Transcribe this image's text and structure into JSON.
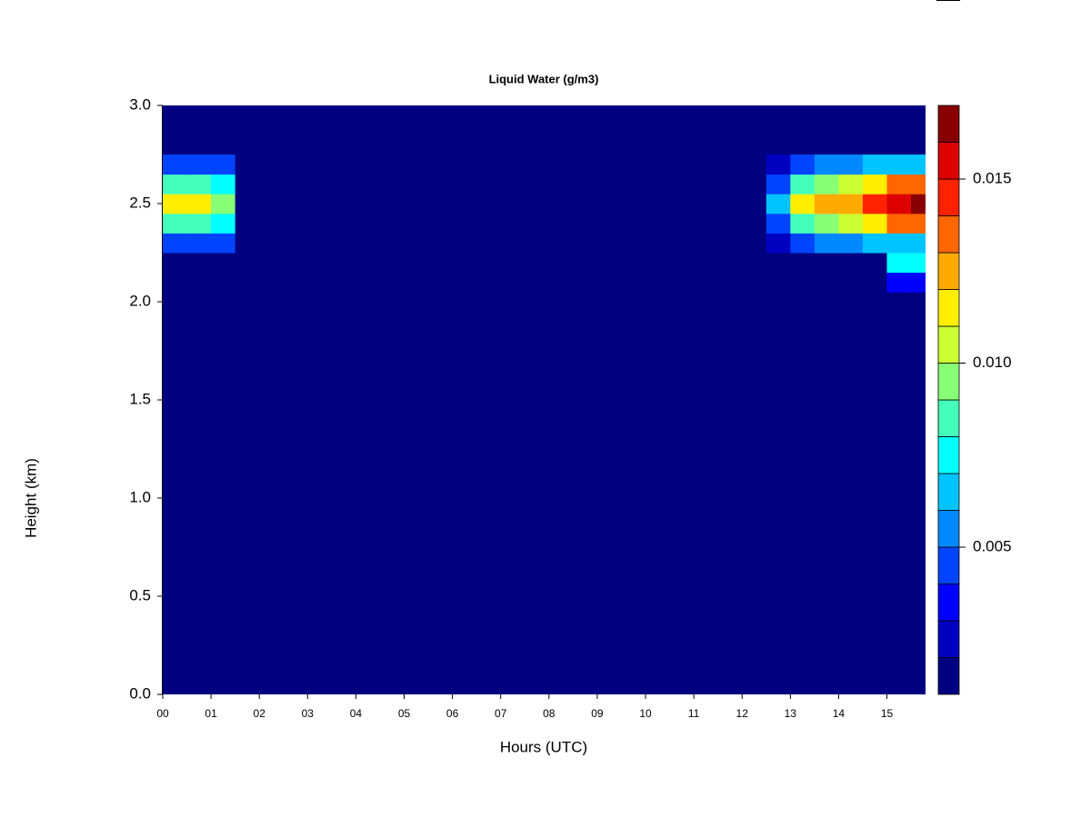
{
  "chart_data": {
    "type": "contour",
    "title": "Liquid Water (g/m3)",
    "x_label": "Hours (UTC)",
    "y_label": "Height (km)",
    "x": [
      0.25,
      0.75,
      1.25,
      1.75,
      2.25,
      2.75,
      3.25,
      3.75,
      4.25,
      4.75,
      5.25,
      5.75,
      6.25,
      6.75,
      7.25,
      7.75,
      8.25,
      8.75,
      9.25,
      9.75,
      10.25,
      10.75,
      11.25,
      11.75,
      12.25,
      12.75,
      13.25,
      13.75,
      14.25,
      14.75,
      15.25,
      15.75
    ],
    "y": [
      2.1,
      2.2,
      2.3,
      2.4,
      2.5,
      2.6,
      2.7
    ],
    "z": [
      [
        0,
        0,
        0,
        0,
        0,
        0,
        0,
        0,
        0,
        0,
        0,
        0,
        0,
        0,
        0,
        0,
        0,
        0,
        0,
        0,
        0,
        0,
        0,
        0,
        0,
        0,
        0,
        0,
        0,
        0,
        0.003,
        0.003
      ],
      [
        0,
        0,
        0,
        0,
        0,
        0,
        0,
        0,
        0,
        0,
        0,
        0,
        0,
        0,
        0,
        0,
        0,
        0,
        0,
        0,
        0,
        0,
        0,
        0,
        0,
        0,
        0,
        0,
        0,
        0,
        0.007,
        0.007
      ],
      [
        0.004,
        0.004,
        0.004,
        0,
        0,
        0,
        0,
        0,
        0,
        0,
        0,
        0,
        0,
        0,
        0,
        0,
        0,
        0,
        0,
        0,
        0,
        0,
        0,
        0,
        0,
        0.002,
        0.004,
        0.005,
        0.005,
        0.006,
        0.006,
        0.006
      ],
      [
        0.008,
        0.008,
        0.007,
        0,
        0,
        0,
        0,
        0,
        0,
        0,
        0,
        0,
        0,
        0,
        0,
        0,
        0,
        0,
        0,
        0,
        0,
        0,
        0,
        0,
        0,
        0.004,
        0.008,
        0.009,
        0.01,
        0.011,
        0.013,
        0.013
      ],
      [
        0.011,
        0.011,
        0.009,
        0,
        0,
        0,
        0,
        0,
        0,
        0,
        0,
        0,
        0,
        0,
        0,
        0,
        0,
        0,
        0,
        0,
        0,
        0,
        0,
        0,
        0,
        0.006,
        0.011,
        0.012,
        0.012,
        0.014,
        0.015,
        0.016
      ],
      [
        0.008,
        0.008,
        0.007,
        0,
        0,
        0,
        0,
        0,
        0,
        0,
        0,
        0,
        0,
        0,
        0,
        0,
        0,
        0,
        0,
        0,
        0,
        0,
        0,
        0,
        0,
        0.004,
        0.008,
        0.009,
        0.01,
        0.011,
        0.013,
        0.013
      ],
      [
        0.004,
        0.004,
        0.004,
        0,
        0,
        0,
        0,
        0,
        0,
        0,
        0,
        0,
        0,
        0,
        0,
        0,
        0,
        0,
        0,
        0,
        0,
        0,
        0,
        0,
        0,
        0.002,
        0.004,
        0.005,
        0.005,
        0.006,
        0.006,
        0.006
      ]
    ],
    "levels": [
      0.001,
      0.002,
      0.003,
      0.004,
      0.005,
      0.006,
      0.007,
      0.008,
      0.009,
      0.01,
      0.011,
      0.012,
      0.013,
      0.014,
      0.015,
      0.016,
      0.017
    ],
    "colors": [
      "#000080",
      "#0000c0",
      "#0000ff",
      "#0044ff",
      "#0088ff",
      "#00c4ff",
      "#00ffff",
      "#44ffbb",
      "#88ff77",
      "#ccff33",
      "#ffee00",
      "#ffaa00",
      "#ff6600",
      "#ff2200",
      "#dd0000",
      "#880000"
    ],
    "xlim": [
      0,
      15.8
    ],
    "ylim": [
      0,
      3
    ],
    "xticks": [
      {
        "value": 0,
        "label": "00"
      },
      {
        "value": 1,
        "label": "01"
      },
      {
        "value": 2,
        "label": "02"
      },
      {
        "value": 3,
        "label": "03"
      },
      {
        "value": 4,
        "label": "04"
      },
      {
        "value": 5,
        "label": "05"
      },
      {
        "value": 6,
        "label": "06"
      },
      {
        "value": 7,
        "label": "07"
      },
      {
        "value": 8,
        "label": "08"
      },
      {
        "value": 9,
        "label": "09"
      },
      {
        "value": 10,
        "label": "10"
      },
      {
        "value": 11,
        "label": "11"
      },
      {
        "value": 12,
        "label": "12"
      },
      {
        "value": 13,
        "label": "13"
      },
      {
        "value": 14,
        "label": "14"
      },
      {
        "value": 15,
        "label": "15"
      }
    ],
    "yticks": [
      {
        "value": 0,
        "label": "0.0"
      },
      {
        "value": 0.5,
        "label": "0.5"
      },
      {
        "value": 1,
        "label": "1.0"
      },
      {
        "value": 1.5,
        "label": "1.5"
      },
      {
        "value": 2,
        "label": "2.0"
      },
      {
        "value": 2.5,
        "label": "2.5"
      },
      {
        "value": 3,
        "label": "3.0"
      }
    ],
    "colorbar_ticks": [
      0.005,
      {
        "value": 0.01,
        "label": "0.010"
      },
      0.015
    ]
  }
}
